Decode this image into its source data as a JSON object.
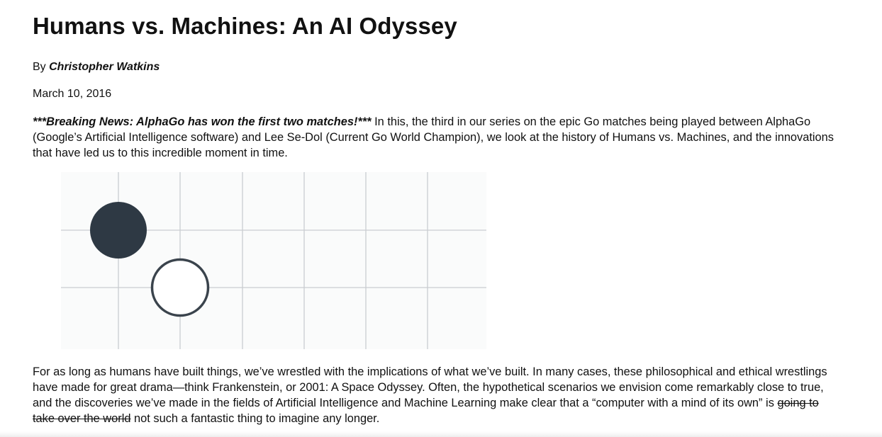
{
  "article": {
    "title": "Humans vs. Machines: An AI Odyssey",
    "byline_prefix": "By",
    "author": "Christopher Watkins",
    "date": "March 10, 2016",
    "intro": {
      "breaking": "***Breaking News: AlphaGo has won the first two matches!***",
      "text": "In this, the third in our series on the epic Go matches being played between AlphaGo (Google’s Artificial Intelligence software) and Lee Se-Dol (Current Go World Champion), we look at the history of Humans vs. Machines, and the innovations that have led us to this incredible moment in time."
    },
    "body": {
      "before_strike": "For as long as humans have built things, we’ve wrestled with the implications of what we’ve built. In many cases, these philosophical and ethical wrestlings have made for great drama—think Frankenstein, or 2001: A Space Odyssey. Often, the hypothetical scenarios we envision come remarkably close to true, and the discoveries we’ve made in the fields of Artificial Intelligence and Machine Learning make clear that a “computer with a mind of its own” is",
      "struck": "going to take over the world",
      "after_strike": "not such a fantastic thing to imagine any longer."
    }
  },
  "figure": {
    "grid_color": "#c9cdd1",
    "background": "#fafbfb",
    "black_stone_color": "#2e3944",
    "white_stone_stroke": "#3a434c",
    "white_stone_fill": "#ffffff",
    "stones": [
      {
        "name": "black-stone",
        "color": "black",
        "col": 1,
        "row": 1
      },
      {
        "name": "white-stone",
        "color": "white",
        "col": 2,
        "row": 2
      }
    ]
  }
}
